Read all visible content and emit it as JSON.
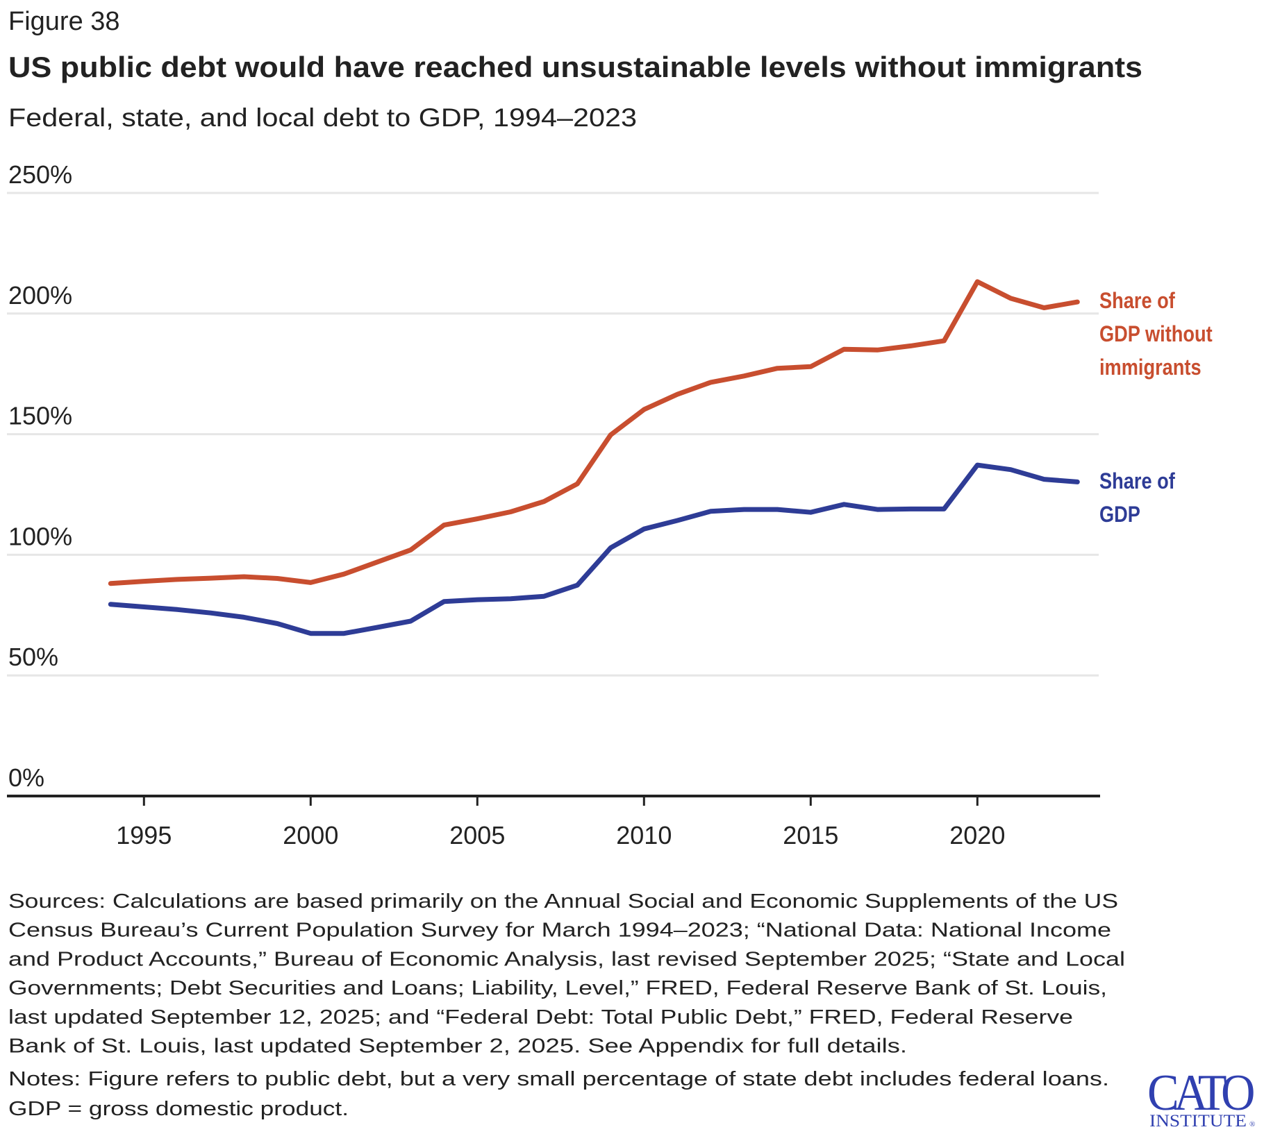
{
  "header": {
    "figure_label": "Figure 38",
    "title": "US public debt would have reached unsustainable levels without immigrants",
    "subtitle": "Federal, state, and local debt to GDP, 1994–2023"
  },
  "chart_data": {
    "type": "line",
    "title": "US public debt would have reached unsustainable levels without immigrants",
    "subtitle": "Federal, state, and local debt to GDP, 1994–2023",
    "xlabel": "",
    "ylabel": "",
    "x": [
      1994,
      1995,
      1996,
      1997,
      1998,
      1999,
      2000,
      2001,
      2002,
      2003,
      2004,
      2005,
      2006,
      2007,
      2008,
      2009,
      2010,
      2011,
      2012,
      2013,
      2014,
      2015,
      2016,
      2017,
      2018,
      2019,
      2020,
      2021,
      2022,
      2023
    ],
    "xlim": [
      1992.5,
      2024.5
    ],
    "ylim": [
      0,
      250
    ],
    "x_ticks": [
      1995,
      2000,
      2005,
      2010,
      2015,
      2020
    ],
    "x_tick_labels": [
      "1995",
      "2000",
      "2005",
      "2010",
      "2015",
      "2020"
    ],
    "y_ticks": [
      0,
      50,
      100,
      150,
      200,
      250
    ],
    "y_tick_labels": [
      "0%",
      "50%",
      "100%",
      "150%",
      "200%",
      "250%"
    ],
    "grid": true,
    "legend": "direct-labels-right",
    "series": [
      {
        "name": "Share of GDP without immigrants",
        "label_lines": [
          "Share of",
          "GDP without",
          "immigrants"
        ],
        "color": "#C84E2F",
        "values": [
          88.1,
          89.0,
          89.8,
          90.3,
          90.9,
          90.2,
          88.5,
          92.0,
          97.0,
          102.0,
          112.3,
          114.9,
          117.8,
          122.1,
          129.4,
          149.7,
          160.2,
          166.5,
          171.5,
          174.1,
          177.3,
          178.0,
          185.2,
          184.9,
          186.6,
          188.7,
          213.2,
          206.3,
          202.4,
          204.8
        ]
      },
      {
        "name": "Share of GDP",
        "label_lines": [
          "Share of",
          "GDP"
        ],
        "color": "#2E3C96",
        "values": [
          79.5,
          78.4,
          77.3,
          75.9,
          74.1,
          71.5,
          67.4,
          67.4,
          69.9,
          72.5,
          80.6,
          81.4,
          81.8,
          82.8,
          87.4,
          102.9,
          110.7,
          114.2,
          118.0,
          118.8,
          118.8,
          117.6,
          120.9,
          118.8,
          119.0,
          119.0,
          137.2,
          135.3,
          131.3,
          130.2
        ]
      }
    ]
  },
  "footer": {
    "sources_lines": [
      "Sources: Calculations are based primarily on the Annual Social and Economic Supplements of the US",
      "Census Bureau’s Current Population Survey for March 1994–2023; “National Data: National Income",
      "and Product Accounts,” Bureau of Economic Analysis, last revised September 2025; “State and Local",
      "Governments; Debt Securities and Loans; Liability, Level,” FRED, Federal Reserve Bank of St. Louis,",
      "last updated September 12, 2025; and “Federal Debt: Total Public Debt,” FRED, Federal Reserve",
      "Bank of St. Louis, last updated September 2, 2025. See Appendix for full details."
    ],
    "notes_lines": [
      "Notes: Figure refers to public debt, but a very small percentage of state debt includes federal loans.",
      "GDP = gross domestic product."
    ]
  },
  "logo": {
    "name": "CATO",
    "subname": "INSTITUTE",
    "mark": "®",
    "color": "#3040B0"
  }
}
